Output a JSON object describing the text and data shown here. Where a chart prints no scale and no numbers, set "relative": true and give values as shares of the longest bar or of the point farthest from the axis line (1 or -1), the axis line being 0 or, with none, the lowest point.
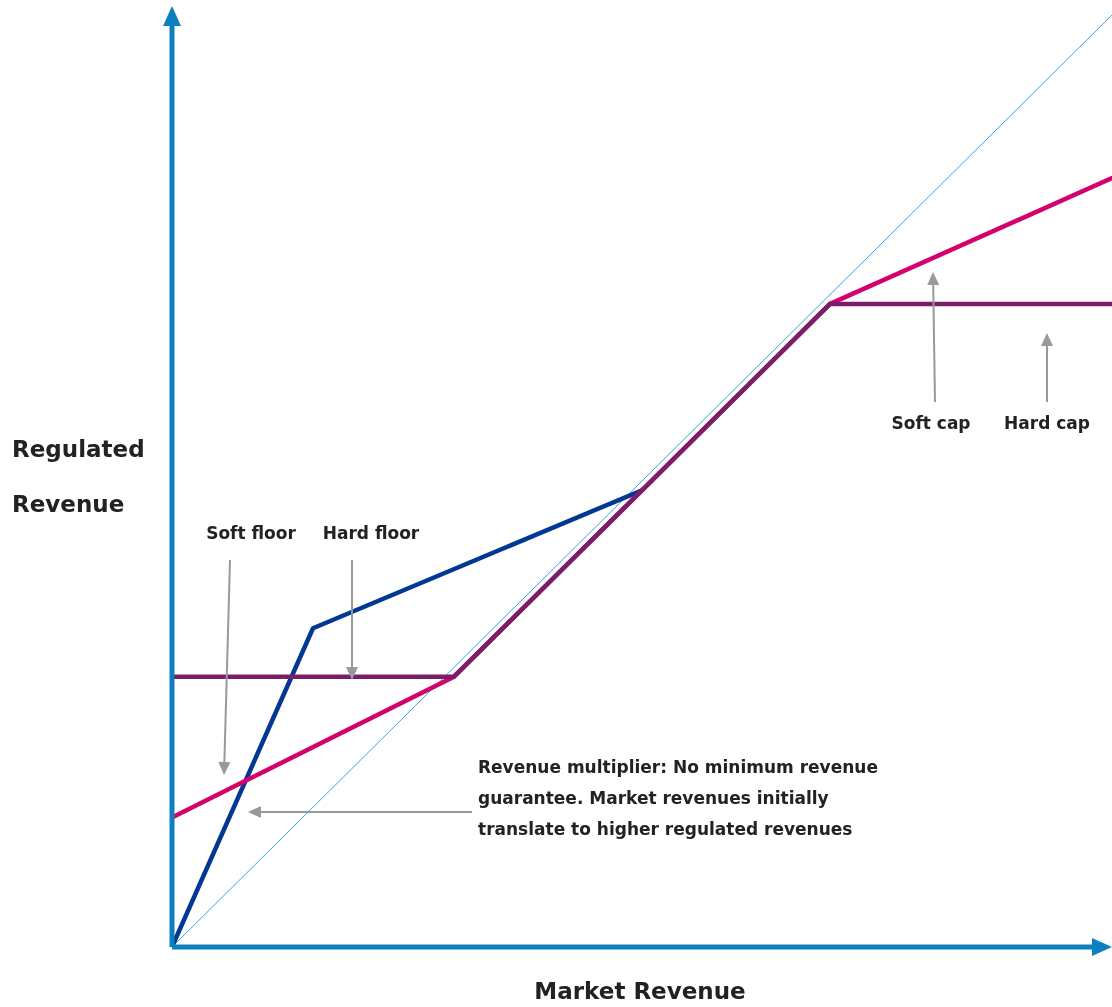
{
  "chart_data": {
    "type": "line",
    "relative": true,
    "xlabel": "Market Revenue",
    "ylabel": "Regulated Revenue",
    "legend": false,
    "marker": "none",
    "line_style": "solid",
    "categories": [
      null,
      null,
      null,
      null,
      null,
      null,
      null,
      null,
      null,
      null,
      null,
      null,
      null,
      null,
      null,
      null,
      null,
      null,
      null,
      null,
      null
    ],
    "series": [
      {
        "color": "#3aa2e4",
        "values": [
          0,
          null,
          null,
          null,
          null,
          null,
          null,
          null,
          null,
          null,
          null,
          null,
          null,
          null,
          null,
          null,
          null,
          null,
          null,
          null,
          1
        ]
      },
      {
        "color": "#003893",
        "values": [
          0,
          null,
          null,
          0.342,
          null,
          null,
          null,
          null,
          null,
          null,
          0.49,
          null,
          null,
          null,
          null,
          null,
          null,
          null,
          null,
          null,
          null
        ]
      },
      {
        "color": "#d4006f",
        "values": [
          0.139,
          null,
          null,
          null,
          null,
          null,
          0.29,
          null,
          null,
          null,
          null,
          null,
          null,
          null,
          0.69,
          null,
          null,
          null,
          null,
          null,
          0.825
        ]
      },
      {
        "color": "#7a1e6a",
        "values": [
          0.29,
          null,
          null,
          null,
          null,
          null,
          0.29,
          null,
          null,
          null,
          null,
          null,
          null,
          null,
          0.69,
          null,
          null,
          null,
          null,
          null,
          0.69
        ]
      }
    ],
    "annotations": [
      "Soft floor",
      "Hard floor",
      "Soft cap",
      "Hard cap",
      "Revenue multiplier: No minimum revenue guarantee. Market revenues initially translate to higher regulated revenues"
    ]
  }
}
